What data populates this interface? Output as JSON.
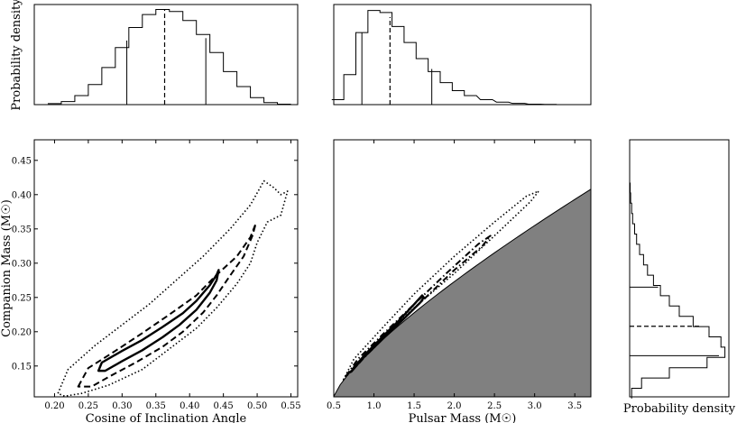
{
  "chart_data": [
    {
      "id": "hist-cosi",
      "type": "histogram",
      "title": "",
      "xlabel": "",
      "ylabel": "Probability density",
      "xlim": [
        0.17,
        0.56
      ],
      "ylim": [
        0,
        1.0
      ],
      "x": [
        0.2,
        0.22,
        0.24,
        0.26,
        0.28,
        0.3,
        0.32,
        0.34,
        0.36,
        0.38,
        0.4,
        0.42,
        0.44,
        0.46,
        0.48,
        0.5,
        0.52,
        0.54
      ],
      "values": [
        0.01,
        0.03,
        0.09,
        0.2,
        0.37,
        0.57,
        0.77,
        0.9,
        0.95,
        0.93,
        0.84,
        0.7,
        0.52,
        0.33,
        0.18,
        0.07,
        0.02,
        0.005
      ],
      "median": 0.363,
      "interval": [
        0.307,
        0.424
      ]
    },
    {
      "id": "hist-mp",
      "type": "histogram",
      "title": "",
      "xlabel": "",
      "ylabel": "",
      "xlim": [
        0.5,
        3.7
      ],
      "ylim": [
        0,
        1.0
      ],
      "x": [
        0.55,
        0.7,
        0.85,
        1.0,
        1.15,
        1.3,
        1.45,
        1.6,
        1.75,
        1.9,
        2.05,
        2.2,
        2.4,
        2.6,
        2.8,
        3.0,
        3.2
      ],
      "values": [
        0.05,
        0.3,
        0.72,
        0.94,
        0.92,
        0.78,
        0.62,
        0.46,
        0.33,
        0.22,
        0.14,
        0.09,
        0.05,
        0.025,
        0.012,
        0.005,
        0.002
      ],
      "median": 1.2,
      "interval": [
        0.85,
        1.72
      ]
    },
    {
      "id": "contour-cosi-mc",
      "type": "line",
      "title": "",
      "xlabel": "Cosine of Inclination Angle",
      "ylabel": "Companion Mass (M☉)",
      "xlim": [
        0.17,
        0.56
      ],
      "ylim": [
        0.105,
        0.48
      ],
      "xticks": [
        "0.20",
        "0.25",
        "0.30",
        "0.35",
        "0.40",
        "0.45",
        "0.50",
        "0.55"
      ],
      "yticks": [
        "0.15",
        "0.20",
        "0.25",
        "0.30",
        "0.35",
        "0.40",
        "0.45"
      ],
      "series": [
        {
          "style": "solid",
          "x": [
            0.265,
            0.27,
            0.3,
            0.33,
            0.36,
            0.39,
            0.41,
            0.43,
            0.44,
            0.443,
            0.44,
            0.43,
            0.41,
            0.385,
            0.36,
            0.33,
            0.3,
            0.275,
            0.265
          ],
          "y": [
            0.143,
            0.155,
            0.172,
            0.188,
            0.207,
            0.227,
            0.245,
            0.268,
            0.283,
            0.29,
            0.275,
            0.257,
            0.232,
            0.21,
            0.192,
            0.173,
            0.157,
            0.143,
            0.143
          ]
        },
        {
          "style": "dashed",
          "x": [
            0.235,
            0.25,
            0.29,
            0.33,
            0.37,
            0.41,
            0.44,
            0.47,
            0.49,
            0.498,
            0.493,
            0.48,
            0.46,
            0.44,
            0.42,
            0.39,
            0.36,
            0.32,
            0.28,
            0.255,
            0.235
          ],
          "y": [
            0.12,
            0.147,
            0.172,
            0.198,
            0.225,
            0.253,
            0.283,
            0.31,
            0.338,
            0.358,
            0.34,
            0.31,
            0.282,
            0.253,
            0.228,
            0.2,
            0.178,
            0.155,
            0.134,
            0.12,
            0.12
          ]
        },
        {
          "style": "dotted",
          "x": [
            0.205,
            0.22,
            0.26,
            0.3,
            0.34,
            0.38,
            0.42,
            0.46,
            0.49,
            0.51,
            0.525,
            0.535,
            0.545,
            0.535,
            0.515,
            0.5,
            0.49,
            0.47,
            0.44,
            0.41,
            0.37,
            0.33,
            0.28,
            0.24,
            0.215,
            0.205
          ],
          "y": [
            0.11,
            0.145,
            0.18,
            0.21,
            0.24,
            0.275,
            0.31,
            0.35,
            0.385,
            0.42,
            0.41,
            0.4,
            0.405,
            0.37,
            0.36,
            0.33,
            0.3,
            0.27,
            0.235,
            0.205,
            0.175,
            0.145,
            0.122,
            0.11,
            0.106,
            0.11
          ]
        }
      ]
    },
    {
      "id": "contour-mp-mc",
      "type": "line",
      "title": "",
      "xlabel": "Pulsar Mass (M☉)",
      "ylabel": "",
      "xlim": [
        0.5,
        3.7
      ],
      "ylim": [
        0.105,
        0.48
      ],
      "xticks": [
        "0.5",
        "1.0",
        "1.5",
        "2.0",
        "2.5",
        "3.0",
        "3.5"
      ],
      "series": [
        {
          "style": "solid",
          "x": [
            0.72,
            0.75,
            0.9,
            1.1,
            1.3,
            1.5,
            1.6,
            1.62,
            1.58,
            1.4,
            1.2,
            1.0,
            0.85,
            0.75,
            0.72
          ],
          "y": [
            0.142,
            0.148,
            0.168,
            0.192,
            0.215,
            0.24,
            0.253,
            0.25,
            0.243,
            0.222,
            0.2,
            0.177,
            0.16,
            0.146,
            0.142
          ]
        },
        {
          "style": "dashdot",
          "x": [
            0.65,
            0.8,
            1.1,
            1.5,
            1.9,
            2.3,
            2.45,
            2.35,
            2.0,
            1.6,
            1.2,
            0.9,
            0.72,
            0.65
          ],
          "y": [
            0.135,
            0.16,
            0.195,
            0.24,
            0.285,
            0.328,
            0.34,
            0.325,
            0.29,
            0.245,
            0.2,
            0.165,
            0.142,
            0.135
          ]
        },
        {
          "style": "dotted",
          "x": [
            0.62,
            0.75,
            1.1,
            1.5,
            2.0,
            2.5,
            2.9,
            3.05,
            2.95,
            2.5,
            2.0,
            1.5,
            1.1,
            0.8,
            0.65,
            0.62
          ],
          "y": [
            0.13,
            0.16,
            0.205,
            0.255,
            0.31,
            0.36,
            0.398,
            0.405,
            0.39,
            0.34,
            0.285,
            0.235,
            0.19,
            0.155,
            0.135,
            0.13
          ]
        }
      ],
      "excluded_region": "shaded"
    },
    {
      "id": "hist-mc",
      "type": "histogram",
      "orientation": "horizontal",
      "title": "",
      "xlabel": "Probability density",
      "ylabel": "",
      "ylim": [
        0.105,
        0.48
      ],
      "xlim": [
        0,
        1.0
      ],
      "y": [
        0.11,
        0.125,
        0.14,
        0.155,
        0.17,
        0.185,
        0.2,
        0.215,
        0.23,
        0.245,
        0.26,
        0.275,
        0.29,
        0.305,
        0.32,
        0.335,
        0.35,
        0.365,
        0.38,
        0.395,
        0.41
      ],
      "values": [
        0.02,
        0.12,
        0.4,
        0.78,
        0.96,
        0.92,
        0.8,
        0.64,
        0.5,
        0.4,
        0.31,
        0.24,
        0.18,
        0.14,
        0.1,
        0.07,
        0.05,
        0.03,
        0.02,
        0.01,
        0.005
      ],
      "median": 0.208,
      "interval": [
        0.165,
        0.265
      ]
    }
  ]
}
